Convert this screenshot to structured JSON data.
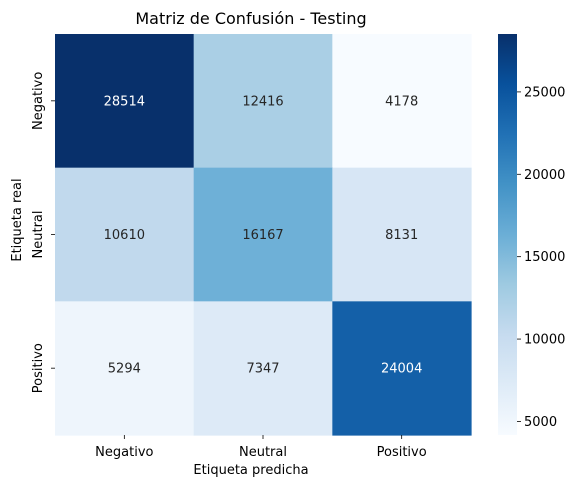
{
  "chart_data": {
    "type": "heatmap",
    "title": "Matriz de Confusión - Testing",
    "xlabel": "Etiqueta predicha",
    "ylabel": "Etiqueta real",
    "x_categories": [
      "Negativo",
      "Neutral",
      "Positivo"
    ],
    "y_categories": [
      "Negativo",
      "Neutral",
      "Positivo"
    ],
    "matrix": [
      [
        28514,
        12416,
        4178
      ],
      [
        10610,
        16167,
        8131
      ],
      [
        5294,
        7347,
        24004
      ]
    ],
    "colormap": "Blues",
    "colorbar": {
      "min": 4178,
      "max": 28514,
      "ticks": [
        5000,
        10000,
        15000,
        20000,
        25000
      ]
    }
  }
}
